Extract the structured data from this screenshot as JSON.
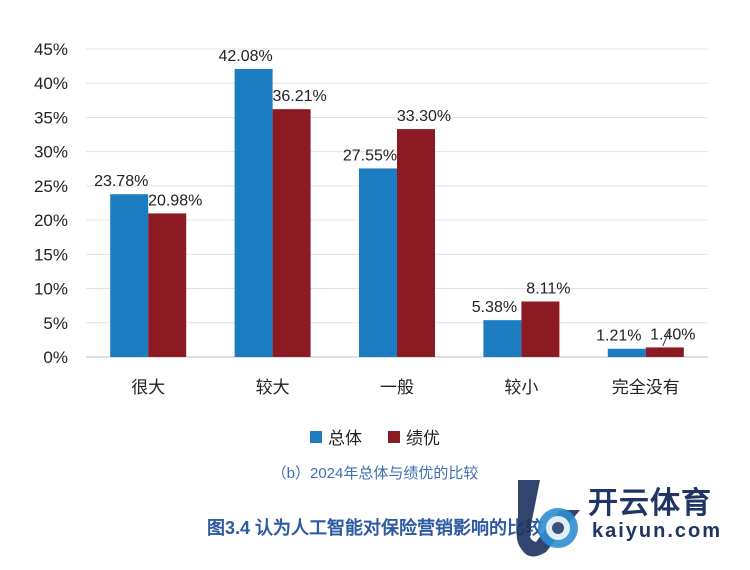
{
  "chart_data": {
    "type": "bar",
    "categories": [
      "很大",
      "较大",
      "一般",
      "较小",
      "完全没有"
    ],
    "series": [
      {
        "name": "总体",
        "values": [
          23.78,
          42.08,
          27.55,
          5.38,
          1.21
        ],
        "color": "#1b7cc1",
        "labels": [
          "23.78%",
          "42.08%",
          "27.55%",
          "5.38%",
          "1.21%"
        ]
      },
      {
        "name": "绩优",
        "values": [
          20.98,
          36.21,
          33.3,
          8.11,
          1.4
        ],
        "color": "#8b1a22",
        "labels": [
          "20.98%",
          "36.21%",
          "33.30%",
          "8.11%",
          "1.40%"
        ]
      }
    ],
    "ylim": [
      0,
      45
    ],
    "yticks": [
      0,
      5,
      10,
      15,
      20,
      25,
      30,
      35,
      40,
      45
    ],
    "ytick_labels": [
      "0%",
      "5%",
      "10%",
      "15%",
      "20%",
      "25%",
      "30%",
      "35%",
      "40%",
      "45%"
    ],
    "grid": true,
    "legend": "bottom-center",
    "subtitle": "（b）2024年总体与绩优的比较",
    "title": "图3.4 认为人工智能对保险营销影响的比较"
  },
  "watermark": {
    "cn": "开云体育",
    "en": "kaiyun.com"
  }
}
